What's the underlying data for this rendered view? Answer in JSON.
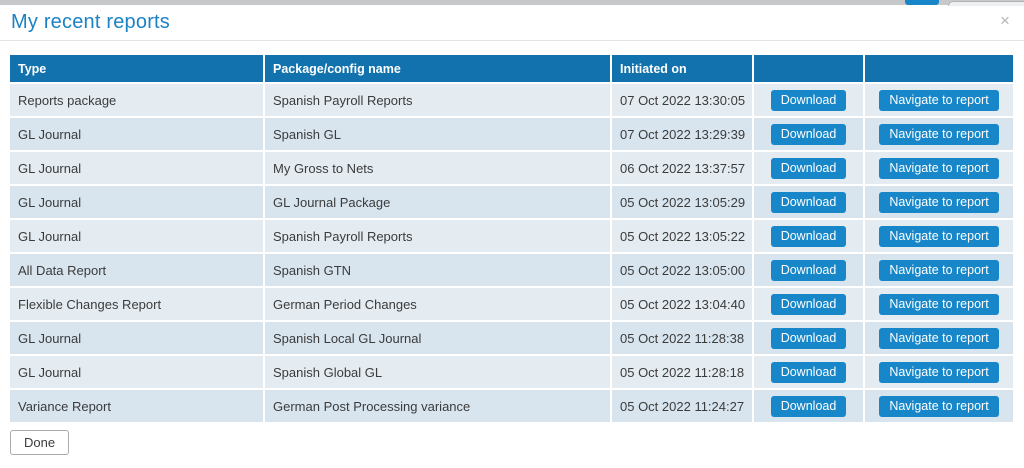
{
  "modal": {
    "title": "My recent reports",
    "close_icon": "×",
    "done_button_label": "Done"
  },
  "table": {
    "columns": {
      "type": "Type",
      "package": "Package/config name",
      "initiated": "Initiated on",
      "download": "",
      "navigate": ""
    },
    "download_button_label": "Download",
    "navigate_button_label": "Navigate to report",
    "rows": [
      {
        "type": "Reports package",
        "package": "Spanish Payroll Reports",
        "initiated": "07 Oct 2022 13:30:05"
      },
      {
        "type": "GL Journal",
        "package": "Spanish GL",
        "initiated": "07 Oct 2022 13:29:39"
      },
      {
        "type": "GL Journal",
        "package": "My Gross to Nets",
        "initiated": "06 Oct 2022 13:37:57"
      },
      {
        "type": "GL Journal",
        "package": "GL Journal Package",
        "initiated": "05 Oct 2022 13:05:29"
      },
      {
        "type": "GL Journal",
        "package": "Spanish Payroll Reports",
        "initiated": "05 Oct 2022 13:05:22"
      },
      {
        "type": "All Data Report",
        "package": "Spanish GTN",
        "initiated": "05 Oct 2022 13:05:00"
      },
      {
        "type": "Flexible Changes Report",
        "package": "German Period Changes",
        "initiated": "05 Oct 2022 13:04:40"
      },
      {
        "type": "GL Journal",
        "package": "Spanish Local GL Journal",
        "initiated": "05 Oct 2022 11:28:38"
      },
      {
        "type": "GL Journal",
        "package": "Spanish Global GL",
        "initiated": "05 Oct 2022 11:28:18"
      },
      {
        "type": "Variance Report",
        "package": "German Post Processing variance",
        "initiated": "05 Oct 2022 11:24:27"
      }
    ]
  },
  "colors": {
    "title_color": "#1b82c5",
    "header_bg": "#1172ae",
    "header_text": "#ffffff",
    "button_bg": "#1787c9",
    "button_text": "#ffffff",
    "row_odd_bg": "#e4ecf2",
    "row_even_bg": "#d8e5ef",
    "cell_text": "#3b3b3b",
    "chrome_strip": "#c6c8ca",
    "chrome_tab": "#edeff0"
  }
}
